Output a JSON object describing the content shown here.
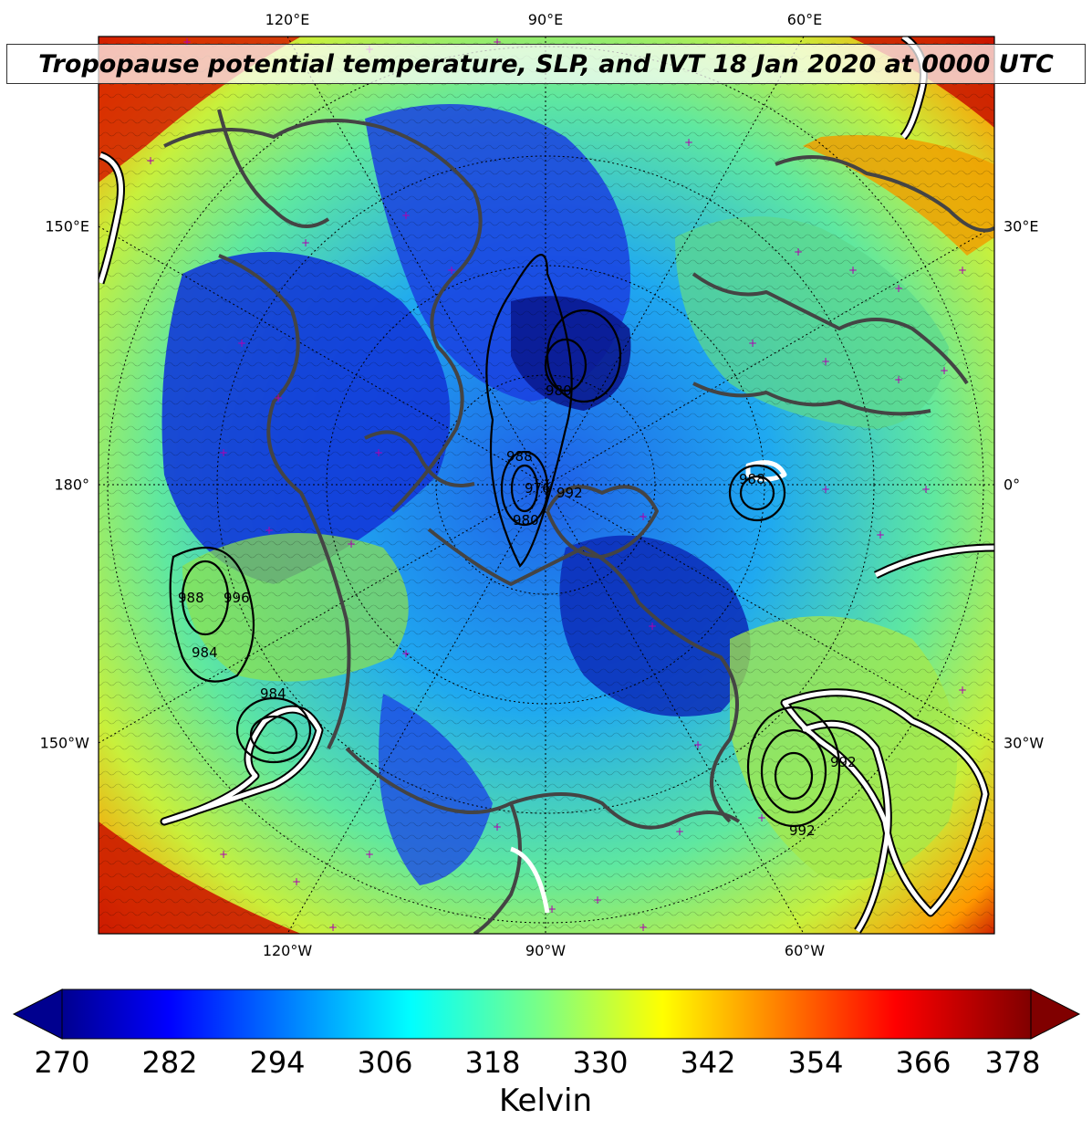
{
  "title": "Tropopause potential temperature, SLP, and IVT 18 Jan 2020 at 0000 UTC",
  "longitude_labels_top": [
    "120°E",
    "90°E",
    "60°E"
  ],
  "longitude_labels_bottom": [
    "120°W",
    "90°W",
    "60°W"
  ],
  "latitude_labels_left": [
    "150°E",
    "180°",
    "150°W"
  ],
  "latitude_labels_right": [
    "30°E",
    "0°",
    "30°W"
  ],
  "colorbar": {
    "min": 270,
    "max": 378,
    "ticks": [
      "270",
      "282",
      "294",
      "306",
      "318",
      "330",
      "342",
      "354",
      "366",
      "378"
    ],
    "label": "Kelvin",
    "colormap": "jet",
    "extend": "both"
  },
  "slp_contour_labels": [
    "980",
    "984",
    "988",
    "992",
    "996",
    "988",
    "984",
    "980",
    "976",
    "992",
    "988",
    "992"
  ],
  "colors": {
    "field_low": "#00008f",
    "field_mid": "#80ff80",
    "field_high": "#800000",
    "coastline": "#444444",
    "ivt_contour": "#ffffff",
    "slp_contour": "#000000",
    "tropopause_marker": "#b000b0"
  }
}
